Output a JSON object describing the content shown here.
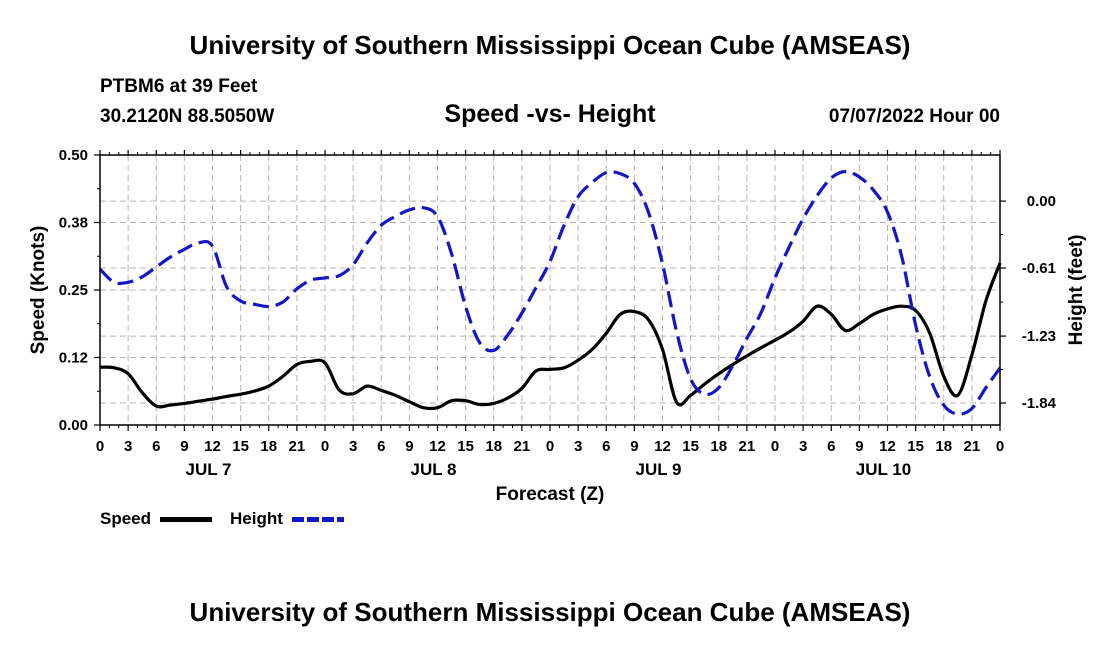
{
  "header": {
    "title": "University of Southern Mississippi Ocean Cube (AMSEAS)",
    "station": "PTBM6 at 39 Feet",
    "coords": "30.2120N  88.5050W",
    "subtitle": "Speed -vs- Height",
    "date": "07/07/2022 Hour 00"
  },
  "footer": {
    "title": "University of Southern Mississippi Ocean Cube (AMSEAS)"
  },
  "legend": {
    "speed_label": "Speed",
    "height_label": "Height"
  },
  "colors": {
    "speed": "#000000",
    "height": "#1515c8",
    "grid": "#b4b4b4"
  },
  "chart_data": {
    "type": "line",
    "title": "Speed -vs- Height",
    "xlabel": "Forecast (Z)",
    "ylabel": "Speed (Knots)",
    "y2label": "Height (feet)",
    "xlim": [
      0,
      96
    ],
    "ylim": [
      0,
      0.5
    ],
    "y2lim": [
      -2.04,
      0.42
    ],
    "yticks": [
      "0.00",
      "0.12",
      "0.25",
      "0.38",
      "0.50"
    ],
    "ytick_values": [
      0,
      0.125,
      0.25,
      0.375,
      0.5
    ],
    "y2ticks": [
      "0.00",
      "-0.61",
      "-1.23",
      "-1.84"
    ],
    "y2tick_values": [
      0,
      -0.61,
      -1.23,
      -1.84
    ],
    "xtick_labels": [
      "0",
      "3",
      "6",
      "9",
      "12",
      "15",
      "18",
      "21",
      "0",
      "3",
      "6",
      "9",
      "12",
      "15",
      "18",
      "21",
      "0",
      "3",
      "6",
      "9",
      "12",
      "15",
      "18",
      "21",
      "0",
      "3",
      "6",
      "9",
      "12",
      "15",
      "18",
      "21",
      "0"
    ],
    "day_labels": [
      {
        "label": "JUL 7",
        "hour": 12
      },
      {
        "label": "JUL 8",
        "hour": 36
      },
      {
        "label": "JUL 9",
        "hour": 60
      },
      {
        "label": "JUL 10",
        "hour": 84
      }
    ],
    "series": [
      {
        "name": "Speed",
        "axis": "left",
        "style": "solid",
        "x": [
          0,
          1.5,
          3,
          4.5,
          6,
          7.5,
          9,
          10.5,
          12,
          13.5,
          15,
          16.5,
          18,
          19.5,
          21,
          22.5,
          24,
          25.5,
          27,
          28.5,
          30,
          31.5,
          33,
          34.5,
          36,
          37.5,
          39,
          40.5,
          42,
          43.5,
          45,
          46.5,
          48,
          49.5,
          51,
          52.5,
          54,
          55.5,
          57,
          58.5,
          60,
          61.5,
          63,
          64.5,
          66,
          67.5,
          69,
          70.5,
          72,
          73.5,
          75,
          76.5,
          78,
          79.5,
          81,
          82.5,
          84,
          85.5,
          87,
          88.5,
          90,
          91.5,
          93,
          94.5,
          96
        ],
        "values": [
          0.107,
          0.106,
          0.095,
          0.06,
          0.035,
          0.037,
          0.04,
          0.044,
          0.048,
          0.053,
          0.057,
          0.063,
          0.072,
          0.09,
          0.112,
          0.118,
          0.115,
          0.065,
          0.058,
          0.072,
          0.064,
          0.055,
          0.043,
          0.032,
          0.032,
          0.045,
          0.045,
          0.038,
          0.04,
          0.05,
          0.068,
          0.1,
          0.103,
          0.106,
          0.12,
          0.14,
          0.17,
          0.205,
          0.21,
          0.195,
          0.14,
          0.042,
          0.055,
          0.076,
          0.095,
          0.112,
          0.128,
          0.143,
          0.157,
          0.172,
          0.192,
          0.22,
          0.205,
          0.175,
          0.188,
          0.205,
          0.215,
          0.22,
          0.212,
          0.17,
          0.09,
          0.055,
          0.13,
          0.23,
          0.3
        ]
      },
      {
        "name": "Height",
        "axis": "right",
        "style": "dashed",
        "x": [
          0,
          1.5,
          3,
          4.5,
          6,
          7.5,
          9,
          10.5,
          12,
          13.5,
          15,
          16.5,
          18,
          19.5,
          21,
          22.5,
          24,
          25.5,
          27,
          28.5,
          30,
          31.5,
          33,
          34.5,
          36,
          37.5,
          39,
          40.5,
          42,
          43.5,
          45,
          46.5,
          48,
          49.5,
          51,
          52.5,
          54,
          55.5,
          57,
          58.5,
          60,
          61.5,
          63,
          64.5,
          66,
          67.5,
          69,
          70.5,
          72,
          73.5,
          75,
          76.5,
          78,
          79.5,
          81,
          82.5,
          84,
          85.5,
          87,
          88.5,
          90,
          91.5,
          93,
          94.5,
          96
        ],
        "values": [
          -0.62,
          -0.74,
          -0.74,
          -0.69,
          -0.6,
          -0.51,
          -0.44,
          -0.38,
          -0.41,
          -0.78,
          -0.91,
          -0.94,
          -0.96,
          -0.92,
          -0.8,
          -0.72,
          -0.7,
          -0.68,
          -0.58,
          -0.38,
          -0.22,
          -0.14,
          -0.08,
          -0.06,
          -0.14,
          -0.48,
          -0.96,
          -1.29,
          -1.36,
          -1.22,
          -1.02,
          -0.79,
          -0.55,
          -0.22,
          0.04,
          0.17,
          0.26,
          0.25,
          0.16,
          -0.1,
          -0.57,
          -1.19,
          -1.62,
          -1.76,
          -1.7,
          -1.5,
          -1.25,
          -1.02,
          -0.7,
          -0.42,
          -0.16,
          0.05,
          0.21,
          0.27,
          0.22,
          0.1,
          -0.1,
          -0.5,
          -1.13,
          -1.6,
          -1.86,
          -1.94,
          -1.89,
          -1.7,
          -1.52
        ]
      }
    ]
  }
}
